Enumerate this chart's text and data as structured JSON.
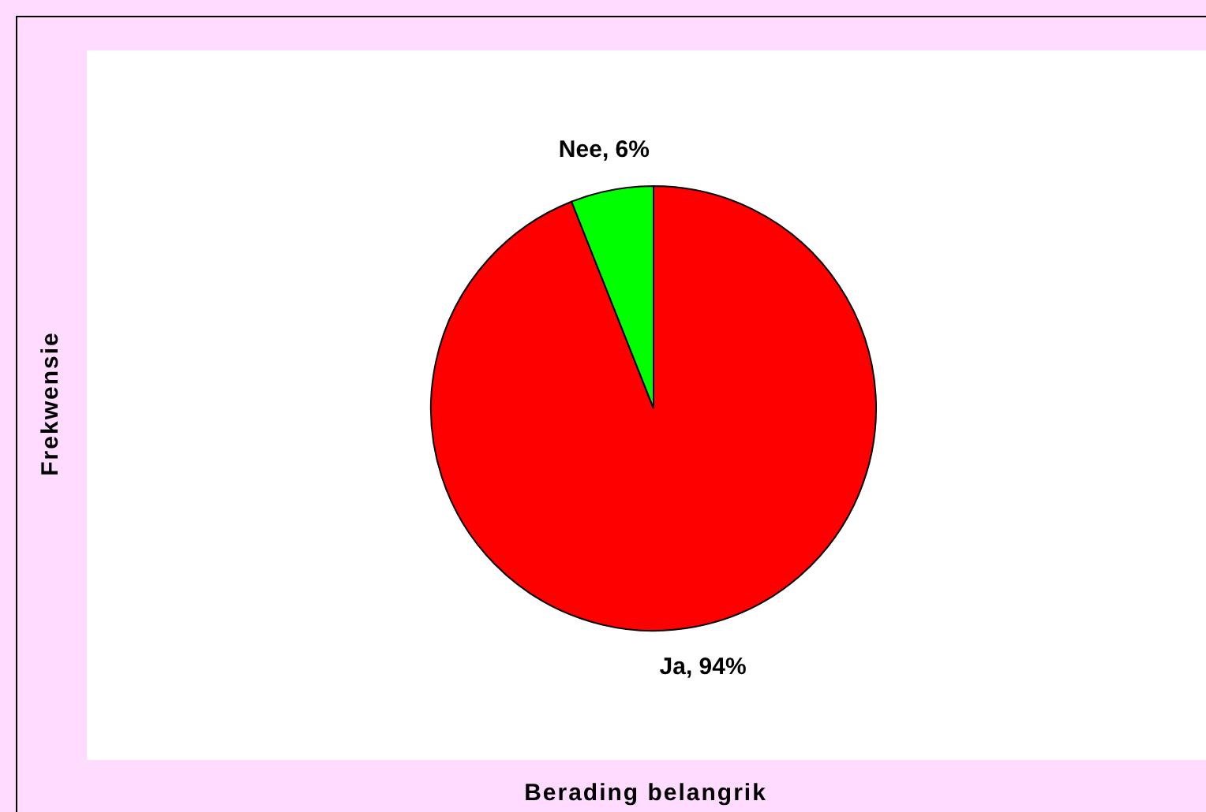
{
  "chart_data": {
    "type": "pie",
    "xlabel": "Berading belangrik",
    "ylabel": "Frekwensie",
    "categories": [
      "Ja",
      "Nee"
    ],
    "values": [
      94,
      6
    ],
    "colors": [
      "#ff0000",
      "#00ff00"
    ],
    "value_labels": [
      "94%",
      "6%"
    ],
    "legend": false
  }
}
